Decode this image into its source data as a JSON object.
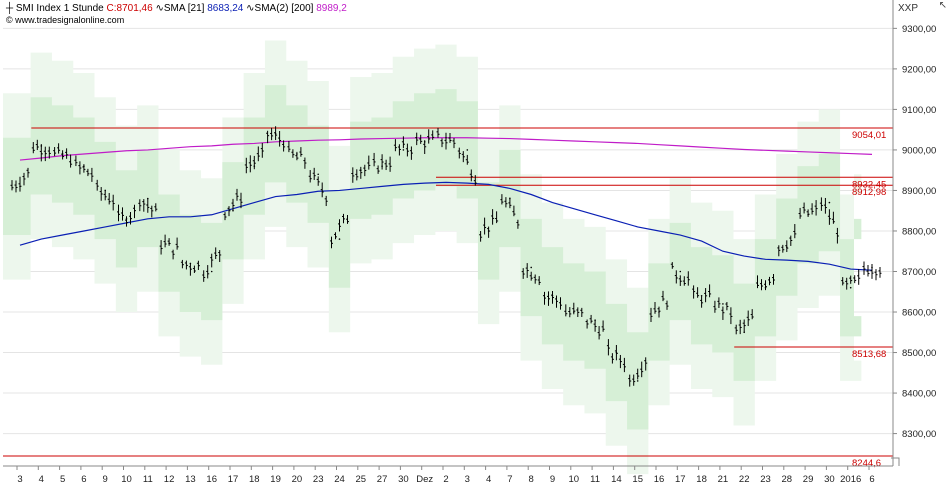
{
  "header": {
    "symbol_icon": "ohlc-bar-icon",
    "symbol": "SMI Index",
    "interval": "1 Stunde",
    "close_label": "C:8701,46",
    "sma_icon": "wave-line-icon",
    "sma_label": "SMA [21]",
    "sma_value": "8683,24",
    "sma2_label": "SMA(2) [200]",
    "sma2_value": "8989,2",
    "copyright": "© www.tradesignalonline.com",
    "axis_tag": "XXP",
    "corner_symbol": "↖"
  },
  "colors": {
    "price": "#000000",
    "close": "#cc0000",
    "sma21": "#0a1fb4",
    "sma200": "#c01cc8",
    "level": "#cc0000",
    "band_inner": "#d6efd6",
    "band_outer": "#edf7ed",
    "grid": "#e4e4e4"
  },
  "chart_data": {
    "type": "line",
    "y_axis": {
      "min": 8220,
      "max": 9370,
      "ticks": [
        "9300,00",
        "9200,00",
        "9100,00",
        "9000,00",
        "8900,00",
        "8800,00",
        "8700,00",
        "8600,00",
        "8500,00",
        "8400,00",
        "8300,00"
      ]
    },
    "x_axis": {
      "ticks": [
        "3",
        "4",
        "5",
        "6",
        "9",
        "10",
        "11",
        "12",
        "13",
        "16",
        "17",
        "18",
        "19",
        "20",
        "23",
        "24",
        "25",
        "27",
        "30",
        "Dez",
        "2",
        "3",
        "4",
        "7",
        "8",
        "9",
        "10",
        "11",
        "14",
        "15",
        "16",
        "17",
        "18",
        "21",
        "22",
        "23",
        "28",
        "29",
        "30",
        "2016",
        "6"
      ]
    },
    "horizontal_levels": [
      {
        "label": "9054,01",
        "value": 9054.01,
        "x_start": "4"
      },
      {
        "label": "8932,45",
        "value": 8932.45,
        "x_start": "2"
      },
      {
        "label": "8912,98",
        "value": 8912.98,
        "x_start": "2"
      },
      {
        "label": "8513,68",
        "value": 8513.68,
        "x_start": "22"
      },
      {
        "label": "8244,6",
        "value": 8244.6,
        "x_start": "3"
      }
    ],
    "series": [
      {
        "name": "SMI Index",
        "style": "ohlc",
        "x": [
          "3",
          "4",
          "5",
          "6",
          "9",
          "10",
          "11",
          "12",
          "13",
          "16",
          "17",
          "18",
          "19",
          "20",
          "23",
          "24",
          "25",
          "27",
          "30",
          "Dez",
          "2",
          "3",
          "4",
          "7",
          "8",
          "9",
          "10",
          "11",
          "14",
          "15",
          "16",
          "17",
          "18",
          "21",
          "22",
          "23",
          "28",
          "29",
          "30",
          "2016",
          "6"
        ],
        "values": [
          8910,
          9010,
          8990,
          8960,
          8900,
          8830,
          8880,
          8770,
          8720,
          8700,
          8850,
          8960,
          9040,
          8990,
          8940,
          8780,
          8950,
          8960,
          9000,
          9020,
          9030,
          9000,
          8800,
          8880,
          8710,
          8640,
          8600,
          8580,
          8500,
          8430,
          8600,
          8700,
          8640,
          8620,
          8550,
          8660,
          8760,
          8840,
          8870,
          8660,
          8710
        ]
      },
      {
        "name": "SMA [21]",
        "style": "line",
        "x": [
          "3",
          "4",
          "5",
          "6",
          "9",
          "10",
          "11",
          "12",
          "13",
          "16",
          "17",
          "18",
          "19",
          "20",
          "23",
          "24",
          "25",
          "27",
          "30",
          "Dez",
          "2",
          "3",
          "4",
          "7",
          "8",
          "9",
          "10",
          "11",
          "14",
          "15",
          "16",
          "17",
          "18",
          "21",
          "22",
          "23",
          "28",
          "29",
          "30",
          "2016",
          "6"
        ],
        "values": [
          8765,
          8780,
          8790,
          8800,
          8810,
          8820,
          8830,
          8835,
          8835,
          8840,
          8855,
          8870,
          8885,
          8890,
          8898,
          8900,
          8905,
          8910,
          8915,
          8918,
          8920,
          8918,
          8915,
          8905,
          8890,
          8870,
          8855,
          8840,
          8825,
          8810,
          8800,
          8790,
          8775,
          8750,
          8738,
          8730,
          8728,
          8725,
          8718,
          8706,
          8703
        ]
      },
      {
        "name": "SMA(2) [200]",
        "style": "line",
        "x": [
          "3",
          "4",
          "5",
          "6",
          "9",
          "10",
          "11",
          "12",
          "13",
          "16",
          "17",
          "18",
          "19",
          "20",
          "23",
          "24",
          "25",
          "27",
          "30",
          "Dez",
          "2",
          "3",
          "4",
          "7",
          "8",
          "9",
          "10",
          "11",
          "14",
          "15",
          "16",
          "17",
          "18",
          "21",
          "22",
          "23",
          "28",
          "29",
          "30",
          "2016",
          "6"
        ],
        "values": [
          8975,
          8980,
          8986,
          8990,
          8994,
          8998,
          9000,
          9004,
          9008,
          9010,
          9014,
          9016,
          9020,
          9022,
          9024,
          9025,
          9027,
          9028,
          9029,
          9030,
          9030,
          9030,
          9029,
          9028,
          9026,
          9024,
          9022,
          9020,
          9018,
          9016,
          9013,
          9010,
          9007,
          9004,
          9001,
          8999,
          8997,
          8995,
          8993,
          8991,
          8989
        ]
      }
    ]
  }
}
